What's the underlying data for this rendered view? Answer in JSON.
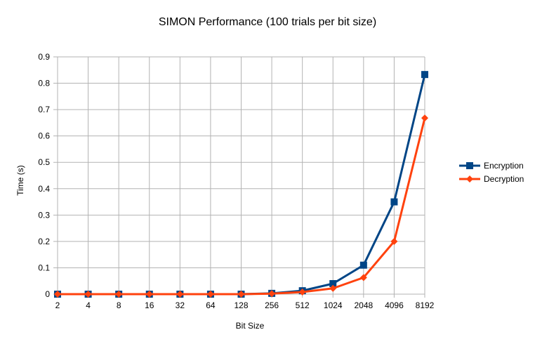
{
  "chart_data": {
    "type": "line",
    "title": "SIMON Performance (100 trials per bit size)",
    "xlabel": "Bit Size",
    "ylabel": "Time (s)",
    "categories": [
      "2",
      "4",
      "8",
      "16",
      "32",
      "64",
      "128",
      "256",
      "512",
      "1024",
      "2048",
      "4096",
      "8192"
    ],
    "ylim": [
      0,
      0.9
    ],
    "yticks": [
      "0",
      "0.1",
      "0.2",
      "0.3",
      "0.4",
      "0.5",
      "0.6",
      "0.7",
      "0.8",
      "0.9"
    ],
    "grid": true,
    "legend_position": "right",
    "series": [
      {
        "name": "Encryption",
        "color": "#004586",
        "marker": "square",
        "values": [
          0.0,
          0.0,
          0.0,
          0.0,
          0.0,
          0.0,
          0.0,
          0.003,
          0.013,
          0.04,
          0.11,
          0.35,
          0.833
        ]
      },
      {
        "name": "Decryption",
        "color": "#ff420e",
        "marker": "diamond",
        "values": [
          0.0,
          0.0,
          0.0,
          0.0,
          0.0,
          0.0,
          0.0,
          0.002,
          0.008,
          0.022,
          0.063,
          0.2,
          0.668
        ]
      }
    ]
  }
}
